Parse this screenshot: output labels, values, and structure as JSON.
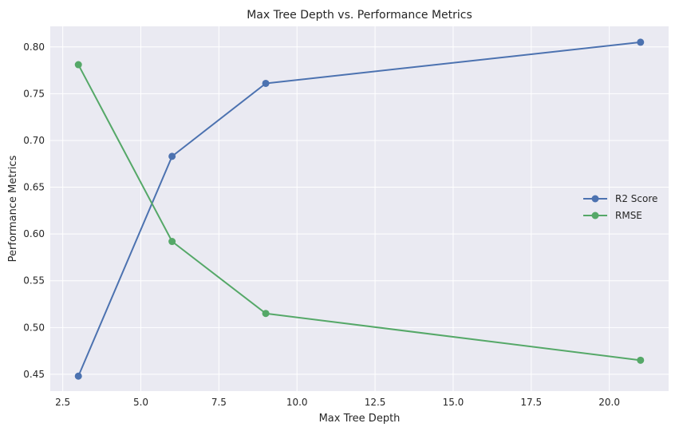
{
  "chart_data": {
    "type": "line",
    "title": "Max Tree Depth vs. Performance Metrics",
    "xlabel": "Max Tree Depth",
    "ylabel": "Performance Metrics",
    "x": [
      3,
      6,
      9,
      21
    ],
    "series": [
      {
        "name": "R2 Score",
        "color": "#4c72b0",
        "values": [
          0.448,
          0.683,
          0.761,
          0.805
        ]
      },
      {
        "name": "RMSE",
        "color": "#55a868",
        "values": [
          0.781,
          0.592,
          0.515,
          0.465
        ]
      }
    ],
    "xlim": [
      2.1,
      21.9
    ],
    "ylim": [
      0.432,
      0.822
    ],
    "xticks": [
      2.5,
      5.0,
      7.5,
      10.0,
      12.5,
      15.0,
      17.5,
      20.0
    ],
    "xtick_labels": [
      "2.5",
      "5.0",
      "7.5",
      "10.0",
      "12.5",
      "15.0",
      "17.5",
      "20.0"
    ],
    "yticks": [
      0.45,
      0.5,
      0.55,
      0.6,
      0.65,
      0.7,
      0.75,
      0.8
    ],
    "ytick_labels": [
      "0.45",
      "0.50",
      "0.55",
      "0.60",
      "0.65",
      "0.70",
      "0.75",
      "0.80"
    ],
    "grid": true,
    "legend_position": "center-right",
    "background_color": "#eaeaf2",
    "grid_color": "#ffffff"
  }
}
